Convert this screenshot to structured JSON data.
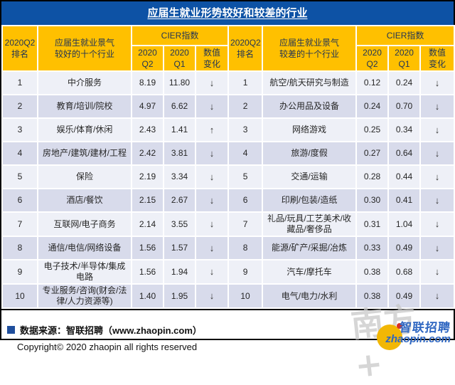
{
  "meta": {
    "title": "应届生就业形势较好和较差的行业"
  },
  "colors": {
    "title_bar_blue": "#0D52A5",
    "header_gold": "#FFC000",
    "header_text": "#1F3355",
    "row_odd": "#EEF0F7",
    "row_even": "#D8DBEB",
    "arrow_color": "#333333",
    "frame_border": "#000000",
    "source_bullet_blue": "#1F4E9C",
    "logo_blue": "#2E66C1",
    "logo_yellow": "#F2B705",
    "logo_red": "#D93025",
    "watermark_gray": "#C9C9C9"
  },
  "header": {
    "rank": "2020Q2\n排名",
    "better_label": "应届生就业景气\n较好的十个行业",
    "worse_label": "应届生就业景气\n较差的十个行业",
    "cier": "CIER指数",
    "q2": "2020\nQ2",
    "q1": "2020\nQ1",
    "change": "数值\n变化"
  },
  "icons": {
    "arrow_down": "↓",
    "arrow_up": "↑"
  },
  "chart_data": {
    "type": "table",
    "title": "应届生就业形势较好和较差的行业",
    "better": {
      "label": "应届生就业景气较好的十个行业",
      "columns": [
        "2020Q2排名",
        "行业",
        "CIER指数 2020Q2",
        "CIER指数 2020Q1",
        "数值变化"
      ],
      "rows": [
        {
          "rank": "1",
          "industry": "中介服务",
          "q2": "8.19",
          "q1": "11.80",
          "change": "down"
        },
        {
          "rank": "2",
          "industry": "教育/培训/院校",
          "q2": "4.97",
          "q1": "6.62",
          "change": "down"
        },
        {
          "rank": "3",
          "industry": "娱乐/体育/休闲",
          "q2": "2.43",
          "q1": "1.41",
          "change": "up"
        },
        {
          "rank": "4",
          "industry": "房地产/建筑/建材/工程",
          "q2": "2.42",
          "q1": "3.81",
          "change": "down"
        },
        {
          "rank": "5",
          "industry": "保险",
          "q2": "2.19",
          "q1": "3.34",
          "change": "down"
        },
        {
          "rank": "6",
          "industry": "酒店/餐饮",
          "q2": "2.15",
          "q1": "2.67",
          "change": "down"
        },
        {
          "rank": "7",
          "industry": "互联网/电子商务",
          "q2": "2.14",
          "q1": "3.55",
          "change": "down"
        },
        {
          "rank": "8",
          "industry": "通信/电信/网络设备",
          "q2": "1.56",
          "q1": "1.57",
          "change": "down"
        },
        {
          "rank": "9",
          "industry": "电子技术/半导体/集成电路",
          "q2": "1.56",
          "q1": "1.94",
          "change": "down"
        },
        {
          "rank": "10",
          "industry": "专业服务/咨询(财会/法律/人力资源等)",
          "q2": "1.40",
          "q1": "1.95",
          "change": "down"
        }
      ]
    },
    "worse": {
      "label": "应届生就业景气较差的十个行业",
      "columns": [
        "2020Q2排名",
        "行业",
        "CIER指数 2020Q2",
        "CIER指数 2020Q1",
        "数值变化"
      ],
      "rows": [
        {
          "rank": "1",
          "industry": "航空/航天研究与制造",
          "q2": "0.12",
          "q1": "0.24",
          "change": "down"
        },
        {
          "rank": "2",
          "industry": "办公用品及设备",
          "q2": "0.24",
          "q1": "0.70",
          "change": "down"
        },
        {
          "rank": "3",
          "industry": "网络游戏",
          "q2": "0.25",
          "q1": "0.34",
          "change": "down"
        },
        {
          "rank": "4",
          "industry": "旅游/度假",
          "q2": "0.27",
          "q1": "0.64",
          "change": "down"
        },
        {
          "rank": "5",
          "industry": "交通/运输",
          "q2": "0.28",
          "q1": "0.44",
          "change": "down"
        },
        {
          "rank": "6",
          "industry": "印刷/包装/造纸",
          "q2": "0.30",
          "q1": "0.41",
          "change": "down"
        },
        {
          "rank": "7",
          "industry": "礼品/玩具/工艺美术/收藏品/奢侈品",
          "q2": "0.31",
          "q1": "1.04",
          "change": "down"
        },
        {
          "rank": "8",
          "industry": "能源/矿产/采掘/冶炼",
          "q2": "0.33",
          "q1": "0.49",
          "change": "down"
        },
        {
          "rank": "9",
          "industry": "汽车/摩托车",
          "q2": "0.38",
          "q1": "0.68",
          "change": "down"
        },
        {
          "rank": "10",
          "industry": "电气/电力/水利",
          "q2": "0.38",
          "q1": "0.49",
          "change": "down"
        }
      ]
    }
  },
  "footer": {
    "source": "数据来源：智联招聘（www.zhaopin.com）",
    "copyright": "Copyright© 2020 zhaopin all rights reserved"
  },
  "logo": {
    "watermark": "南方+",
    "brand": "智联招聘",
    "domain": "zhaopin.com"
  }
}
